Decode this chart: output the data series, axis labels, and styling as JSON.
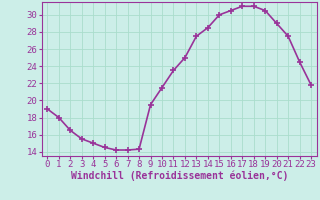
{
  "x": [
    0,
    1,
    2,
    3,
    4,
    5,
    6,
    7,
    8,
    9,
    10,
    11,
    12,
    13,
    14,
    15,
    16,
    17,
    18,
    19,
    20,
    21,
    22,
    23
  ],
  "y": [
    19.0,
    18.0,
    16.5,
    15.5,
    15.0,
    14.5,
    14.2,
    14.2,
    14.3,
    19.5,
    21.5,
    23.5,
    25.0,
    27.5,
    28.5,
    30.0,
    30.5,
    31.0,
    31.0,
    30.5,
    29.0,
    27.5,
    24.5,
    21.8
  ],
  "line_color": "#993399",
  "marker": "+",
  "background_color": "#cceee8",
  "grid_color": "#aaddcc",
  "xlabel": "Windchill (Refroidissement éolien,°C)",
  "ylabel": "",
  "xlim": [
    -0.5,
    23.5
  ],
  "ylim": [
    13.5,
    31.5
  ],
  "yticks": [
    14,
    16,
    18,
    20,
    22,
    24,
    26,
    28,
    30
  ],
  "xticks": [
    0,
    1,
    2,
    3,
    4,
    5,
    6,
    7,
    8,
    9,
    10,
    11,
    12,
    13,
    14,
    15,
    16,
    17,
    18,
    19,
    20,
    21,
    22,
    23
  ],
  "font_color": "#993399",
  "font_family": "monospace",
  "font_size": 6.5,
  "xlabel_fontsize": 7,
  "linewidth": 1.2,
  "markersize": 4,
  "markeredgewidth": 1.2
}
